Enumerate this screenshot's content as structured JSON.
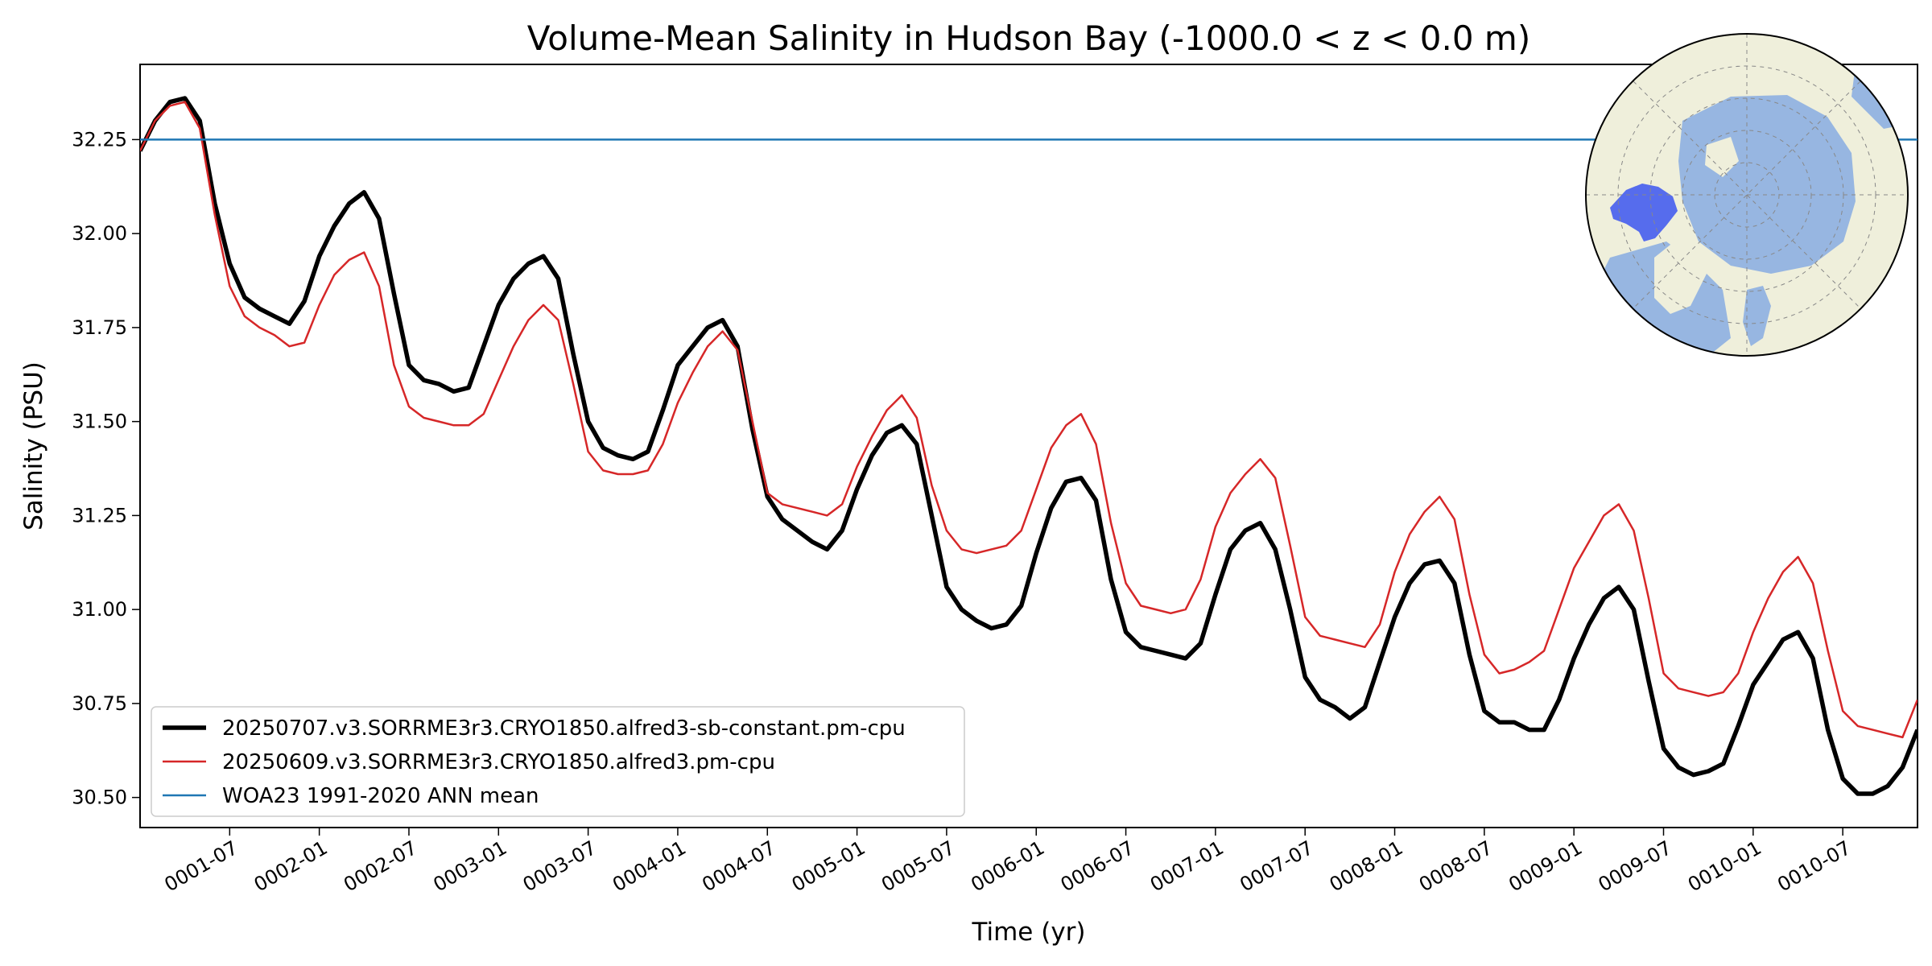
{
  "chart_data": {
    "type": "line",
    "title": "Volume-Mean Salinity in Hudson Bay (-1000.0 < z < 0.0 m)",
    "xlabel": "Time (yr)",
    "ylabel": "Salinity (PSU)",
    "xlim": [
      0.0,
      9.917
    ],
    "ylim": [
      30.42,
      32.45
    ],
    "grid": false,
    "legend_position": "lower-left",
    "x_ticks": [
      {
        "label": "0001-07",
        "value": 0.5
      },
      {
        "label": "0002-01",
        "value": 1.0
      },
      {
        "label": "0002-07",
        "value": 1.5
      },
      {
        "label": "0003-01",
        "value": 2.0
      },
      {
        "label": "0003-07",
        "value": 2.5
      },
      {
        "label": "0004-01",
        "value": 3.0
      },
      {
        "label": "0004-07",
        "value": 3.5
      },
      {
        "label": "0005-01",
        "value": 4.0
      },
      {
        "label": "0005-07",
        "value": 4.5
      },
      {
        "label": "0006-01",
        "value": 5.0
      },
      {
        "label": "0006-07",
        "value": 5.5
      },
      {
        "label": "0007-01",
        "value": 6.0
      },
      {
        "label": "0007-07",
        "value": 6.5
      },
      {
        "label": "0008-01",
        "value": 7.0
      },
      {
        "label": "0008-07",
        "value": 7.5
      },
      {
        "label": "0009-01",
        "value": 8.0
      },
      {
        "label": "0009-07",
        "value": 8.5
      },
      {
        "label": "0010-01",
        "value": 9.0
      },
      {
        "label": "0010-07",
        "value": 9.5
      }
    ],
    "y_ticks": [
      {
        "label": "30.50",
        "value": 30.5
      },
      {
        "label": "30.75",
        "value": 30.75
      },
      {
        "label": "31.00",
        "value": 31.0
      },
      {
        "label": "31.25",
        "value": 31.25
      },
      {
        "label": "31.50",
        "value": 31.5
      },
      {
        "label": "31.75",
        "value": 31.75
      },
      {
        "label": "32.00",
        "value": 32.0
      },
      {
        "label": "32.25",
        "value": 32.25
      }
    ],
    "series": [
      {
        "name": "20250707.v3.SORRME3r3.CRYO1850.alfred3-sb-constant.pm-cpu",
        "color": "#000000",
        "width": 5.5,
        "values": [
          32.22,
          32.3,
          32.35,
          32.36,
          32.3,
          32.08,
          31.92,
          31.83,
          31.8,
          31.78,
          31.76,
          31.82,
          31.94,
          32.02,
          32.08,
          32.11,
          32.04,
          31.84,
          31.65,
          31.61,
          31.6,
          31.58,
          31.59,
          31.7,
          31.81,
          31.88,
          31.92,
          31.94,
          31.88,
          31.68,
          31.5,
          31.43,
          31.41,
          31.4,
          31.42,
          31.53,
          31.65,
          31.7,
          31.75,
          31.77,
          31.7,
          31.48,
          31.3,
          31.24,
          31.21,
          31.18,
          31.16,
          31.21,
          31.32,
          31.41,
          31.47,
          31.49,
          31.44,
          31.25,
          31.06,
          31.0,
          30.97,
          30.95,
          30.96,
          31.01,
          31.15,
          31.27,
          31.34,
          31.35,
          31.29,
          31.08,
          30.94,
          30.9,
          30.89,
          30.88,
          30.87,
          30.91,
          31.04,
          31.16,
          31.21,
          31.23,
          31.16,
          31.0,
          30.82,
          30.76,
          30.74,
          30.71,
          30.74,
          30.86,
          30.98,
          31.07,
          31.12,
          31.13,
          31.07,
          30.88,
          30.73,
          30.7,
          30.7,
          30.68,
          30.68,
          30.76,
          30.87,
          30.96,
          31.03,
          31.06,
          31.0,
          30.81,
          30.63,
          30.58,
          30.56,
          30.57,
          30.59,
          30.69,
          30.8,
          30.86,
          30.92,
          30.94,
          30.87,
          30.68,
          30.55,
          30.51,
          30.51,
          30.53,
          30.58,
          30.68
        ]
      },
      {
        "name": "20250609.v3.SORRME3r3.CRYO1850.alfred3.pm-cpu",
        "color": "#d62728",
        "width": 2.5,
        "values": [
          32.22,
          32.3,
          32.34,
          32.35,
          32.28,
          32.05,
          31.86,
          31.78,
          31.75,
          31.73,
          31.7,
          31.71,
          31.81,
          31.89,
          31.93,
          31.95,
          31.86,
          31.65,
          31.54,
          31.51,
          31.5,
          31.49,
          31.49,
          31.52,
          31.61,
          31.7,
          31.77,
          31.81,
          31.77,
          31.6,
          31.42,
          31.37,
          31.36,
          31.36,
          31.37,
          31.44,
          31.55,
          31.63,
          31.7,
          31.74,
          31.69,
          31.5,
          31.31,
          31.28,
          31.27,
          31.26,
          31.25,
          31.28,
          31.38,
          31.46,
          31.53,
          31.57,
          31.51,
          31.33,
          31.21,
          31.16,
          31.15,
          31.16,
          31.17,
          31.21,
          31.32,
          31.43,
          31.49,
          31.52,
          31.44,
          31.23,
          31.07,
          31.01,
          31.0,
          30.99,
          31.0,
          31.08,
          31.22,
          31.31,
          31.36,
          31.4,
          31.35,
          31.17,
          30.98,
          30.93,
          30.92,
          30.91,
          30.9,
          30.96,
          31.1,
          31.2,
          31.26,
          31.3,
          31.24,
          31.04,
          30.88,
          30.83,
          30.84,
          30.86,
          30.89,
          31.0,
          31.11,
          31.18,
          31.25,
          31.28,
          31.21,
          31.03,
          30.83,
          30.79,
          30.78,
          30.77,
          30.78,
          30.83,
          30.94,
          31.03,
          31.1,
          31.14,
          31.07,
          30.89,
          30.73,
          30.69,
          30.68,
          30.67,
          30.66,
          30.76
        ]
      },
      {
        "name": "WOA23 1991-2020 ANN mean",
        "color": "#1f77b4",
        "width": 2.5,
        "constant": 32.25
      }
    ]
  },
  "inset_map": {
    "projection": "north-polar-stereographic",
    "ocean_color": "#97b6e1",
    "land_color": "#efefdb",
    "region_color": "#3b55f0",
    "region": "Hudson Bay"
  }
}
